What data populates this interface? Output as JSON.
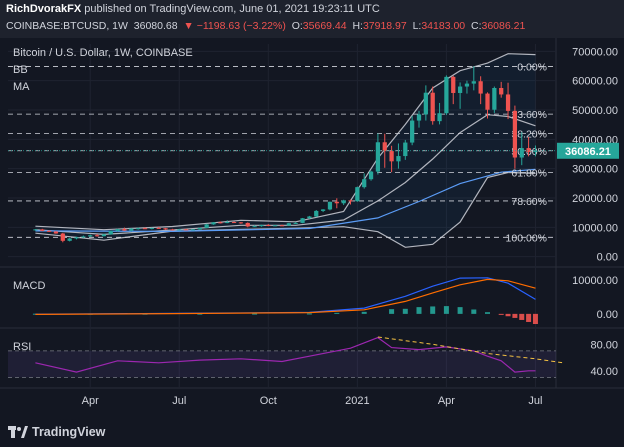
{
  "header": {
    "author": "RichDvorakFX",
    "published": "published on TradingView.com, June 01, 2021 19:23:11 UTC",
    "symbol": "COINBASE:BTCUSD, 1W",
    "last": "36080.68",
    "change": "▼ −1198.63 (−3.22%)",
    "open_label": "O:",
    "open": "35669.44",
    "high_label": "H:",
    "high": "37918.97",
    "low_label": "L:",
    "low": "34183.00",
    "close_label": "C:",
    "close": "36086.21"
  },
  "legend": {
    "title": "Bitcoin / U.S. Dollar, 1W, COINBASE",
    "ind1": "BB",
    "ind2": "MA"
  },
  "footer": {
    "brand": "TradingView"
  },
  "colors": {
    "up": "#26a69a",
    "down": "#ef5350",
    "bb": "#b2b5be",
    "ma": "#5b9cf6",
    "macd": "#2962ff",
    "signal": "#ff6d00",
    "rsi": "#9c27b0",
    "trend": "#f5c242"
  },
  "chart_data": [
    {
      "type": "candlestick",
      "title": "Bitcoin / U.S. Dollar, 1W, COINBASE",
      "x_ticks": [
        "Apr",
        "Jul",
        "Oct",
        "2021",
        "Apr",
        "Jul"
      ],
      "y_ticks": [
        "70000.00",
        "60000.00",
        "50000.00",
        "40000.00",
        "30000.00",
        "20000.00",
        "10000.00",
        "0.00"
      ],
      "ylim": [
        -2500,
        72500
      ],
      "last_price_label": "36086.21",
      "fib_levels": [
        {
          "label": "0.00%",
          "value": 64800
        },
        {
          "label": "23.60%",
          "value": 48600
        },
        {
          "label": "38.20%",
          "value": 42000
        },
        {
          "label": "50.00%",
          "value": 36100
        },
        {
          "label": "61.80%",
          "value": 28700
        },
        {
          "label": "78.60%",
          "value": 19000
        },
        {
          "label": "100.00%",
          "value": 6600
        }
      ],
      "candles": [
        [
          9100,
          9400,
          8900,
          9300
        ],
        [
          9300,
          9500,
          8700,
          8800
        ],
        [
          8800,
          9000,
          8400,
          8600
        ],
        [
          8600,
          8700,
          7800,
          7900
        ],
        [
          7900,
          8100,
          4900,
          5400
        ],
        [
          5400,
          6400,
          5200,
          6200
        ],
        [
          6200,
          6800,
          5900,
          6600
        ],
        [
          6600,
          7200,
          6400,
          6900
        ],
        [
          6900,
          7500,
          6700,
          7300
        ],
        [
          7300,
          7700,
          6800,
          7000
        ],
        [
          7000,
          7800,
          6900,
          7600
        ],
        [
          7600,
          8900,
          7500,
          8800
        ],
        [
          8800,
          9500,
          8600,
          9400
        ],
        [
          9400,
          9900,
          8800,
          8900
        ],
        [
          8900,
          9700,
          8600,
          9600
        ],
        [
          9600,
          9900,
          9200,
          9700
        ],
        [
          9700,
          10000,
          9400,
          9500
        ],
        [
          9500,
          9900,
          9300,
          9800
        ],
        [
          9800,
          10100,
          9600,
          9700
        ],
        [
          9700,
          9800,
          9100,
          9300
        ],
        [
          9300,
          9500,
          9000,
          9200
        ],
        [
          9200,
          9400,
          9000,
          9300
        ],
        [
          9300,
          9500,
          9100,
          9200
        ],
        [
          9200,
          9400,
          9000,
          9300
        ],
        [
          9300,
          9900,
          9200,
          9800
        ],
        [
          9800,
          11200,
          9700,
          11000
        ],
        [
          11000,
          11800,
          10900,
          11700
        ],
        [
          11700,
          12000,
          11300,
          11500
        ],
        [
          11500,
          12400,
          11400,
          11800
        ],
        [
          11800,
          12000,
          11500,
          11700
        ],
        [
          11700,
          11800,
          11200,
          11500
        ],
        [
          11500,
          11700,
          10000,
          10300
        ],
        [
          10300,
          10700,
          10100,
          10400
        ],
        [
          10400,
          10900,
          10200,
          10800
        ],
        [
          10800,
          11100,
          10400,
          10500
        ],
        [
          10500,
          10800,
          10400,
          10700
        ],
        [
          10700,
          10900,
          10500,
          10600
        ],
        [
          10600,
          11500,
          10500,
          11400
        ],
        [
          11400,
          11800,
          11200,
          11500
        ],
        [
          11500,
          13200,
          11400,
          13100
        ],
        [
          13100,
          13900,
          12900,
          13700
        ],
        [
          13700,
          15900,
          13500,
          15600
        ],
        [
          15600,
          16200,
          15200,
          16100
        ],
        [
          16100,
          18800,
          15800,
          18700
        ],
        [
          18700,
          19900,
          16500,
          18200
        ],
        [
          18200,
          19400,
          17600,
          19200
        ],
        [
          19200,
          19500,
          17800,
          18900
        ],
        [
          18900,
          23900,
          18700,
          23700
        ],
        [
          23700,
          28400,
          23200,
          26400
        ],
        [
          26400,
          29300,
          25900,
          29000
        ],
        [
          29000,
          42000,
          28000,
          39000
        ],
        [
          39000,
          41900,
          30300,
          36000
        ],
        [
          36000,
          37800,
          28800,
          32500
        ],
        [
          32500,
          38600,
          30000,
          34300
        ],
        [
          34300,
          39800,
          33000,
          38900
        ],
        [
          38900,
          48000,
          38000,
          46400
        ],
        [
          46400,
          49700,
          44000,
          48500
        ],
        [
          48500,
          58400,
          46400,
          55900
        ],
        [
          55900,
          58000,
          45000,
          46200
        ],
        [
          46200,
          52400,
          45100,
          48900
        ],
        [
          48900,
          61800,
          48300,
          61300
        ],
        [
          61300,
          61700,
          52000,
          55800
        ],
        [
          55800,
          59400,
          50400,
          58000
        ],
        [
          58000,
          60000,
          55600,
          59000
        ],
        [
          59000,
          64900,
          56700,
          59800
        ],
        [
          59800,
          61500,
          52000,
          55600
        ],
        [
          55600,
          56000,
          47100,
          50100
        ],
        [
          50100,
          58000,
          49000,
          57500
        ],
        [
          57500,
          59600,
          54200,
          55300
        ],
        [
          55300,
          59300,
          46900,
          49700
        ],
        [
          49700,
          51500,
          30000,
          33800
        ],
        [
          33800,
          42400,
          31200,
          37000
        ],
        [
          37000,
          40800,
          34200,
          35700
        ],
        [
          35700,
          37900,
          34200,
          36100
        ]
      ],
      "bb_upper": [
        [
          0,
          10400
        ],
        [
          10,
          9200
        ],
        [
          20,
          10300
        ],
        [
          30,
          12400
        ],
        [
          38,
          11900
        ],
        [
          45,
          15400
        ],
        [
          50,
          33600
        ],
        [
          54,
          45100
        ],
        [
          58,
          57500
        ],
        [
          62,
          63400
        ],
        [
          66,
          66000
        ],
        [
          69,
          69200
        ],
        [
          73,
          68900
        ]
      ],
      "bb_lower": [
        [
          0,
          8000
        ],
        [
          10,
          5600
        ],
        [
          20,
          8700
        ],
        [
          30,
          9300
        ],
        [
          38,
          9700
        ],
        [
          45,
          10200
        ],
        [
          50,
          8500
        ],
        [
          54,
          3200
        ],
        [
          58,
          4200
        ],
        [
          62,
          11800
        ],
        [
          66,
          27000
        ],
        [
          69,
          28700
        ],
        [
          73,
          28400
        ]
      ],
      "ma": [
        [
          0,
          9200
        ],
        [
          10,
          7600
        ],
        [
          20,
          9100
        ],
        [
          30,
          10700
        ],
        [
          38,
          10700
        ],
        [
          45,
          12500
        ],
        [
          50,
          19000
        ],
        [
          54,
          25300
        ],
        [
          58,
          33300
        ],
        [
          62,
          42300
        ],
        [
          66,
          48400
        ],
        [
          69,
          47800
        ],
        [
          73,
          44600
        ]
      ],
      "ma_long": [
        [
          0,
          8800
        ],
        [
          20,
          8600
        ],
        [
          40,
          9600
        ],
        [
          50,
          13200
        ],
        [
          56,
          18800
        ],
        [
          62,
          24900
        ],
        [
          68,
          28800
        ],
        [
          73,
          29800
        ]
      ]
    },
    {
      "type": "macd",
      "title": "MACD",
      "y_ticks": [
        "10000.00",
        "0.00"
      ],
      "ylim": [
        -3000,
        13000
      ],
      "macd_line": [
        [
          0,
          -100
        ],
        [
          20,
          150
        ],
        [
          40,
          450
        ],
        [
          48,
          1700
        ],
        [
          54,
          5200
        ],
        [
          58,
          8200
        ],
        [
          62,
          10600
        ],
        [
          66,
          10700
        ],
        [
          69,
          9100
        ],
        [
          73,
          4300
        ]
      ],
      "signal_line": [
        [
          0,
          -150
        ],
        [
          20,
          90
        ],
        [
          40,
          380
        ],
        [
          48,
          1200
        ],
        [
          54,
          3700
        ],
        [
          58,
          6200
        ],
        [
          62,
          8600
        ],
        [
          66,
          10200
        ],
        [
          69,
          9800
        ],
        [
          73,
          7600
        ]
      ],
      "histogram": [
        [
          0,
          60
        ],
        [
          8,
          50
        ],
        [
          16,
          50
        ],
        [
          24,
          70
        ],
        [
          32,
          90
        ],
        [
          40,
          120
        ],
        [
          44,
          300
        ],
        [
          48,
          600
        ],
        [
          52,
          1400
        ],
        [
          54,
          1500
        ],
        [
          56,
          2000
        ],
        [
          58,
          2200
        ],
        [
          60,
          2300
        ],
        [
          62,
          2000
        ],
        [
          64,
          1300
        ],
        [
          66,
          500
        ],
        [
          68,
          -300
        ],
        [
          69,
          -700
        ],
        [
          70,
          -1200
        ],
        [
          71,
          -1800
        ],
        [
          72,
          -2400
        ],
        [
          73,
          -3000
        ]
      ]
    },
    {
      "type": "line",
      "title": "RSI",
      "y_ticks": [
        "80.00",
        "40.00"
      ],
      "ylim": [
        20,
        100
      ],
      "bands": [
        70,
        30
      ],
      "rsi": [
        [
          0,
          52
        ],
        [
          6,
          38
        ],
        [
          12,
          55
        ],
        [
          18,
          52
        ],
        [
          24,
          56
        ],
        [
          30,
          58
        ],
        [
          36,
          54
        ],
        [
          40,
          62
        ],
        [
          46,
          74
        ],
        [
          50,
          90
        ],
        [
          52,
          75
        ],
        [
          56,
          72
        ],
        [
          60,
          76
        ],
        [
          64,
          70
        ],
        [
          66,
          62
        ],
        [
          68,
          55
        ],
        [
          70,
          38
        ],
        [
          72,
          40
        ],
        [
          73,
          40
        ]
      ],
      "trendline": [
        [
          50,
          91
        ],
        [
          58,
          80
        ],
        [
          66,
          66
        ],
        [
          73,
          58
        ],
        [
          77,
          52
        ]
      ]
    }
  ]
}
